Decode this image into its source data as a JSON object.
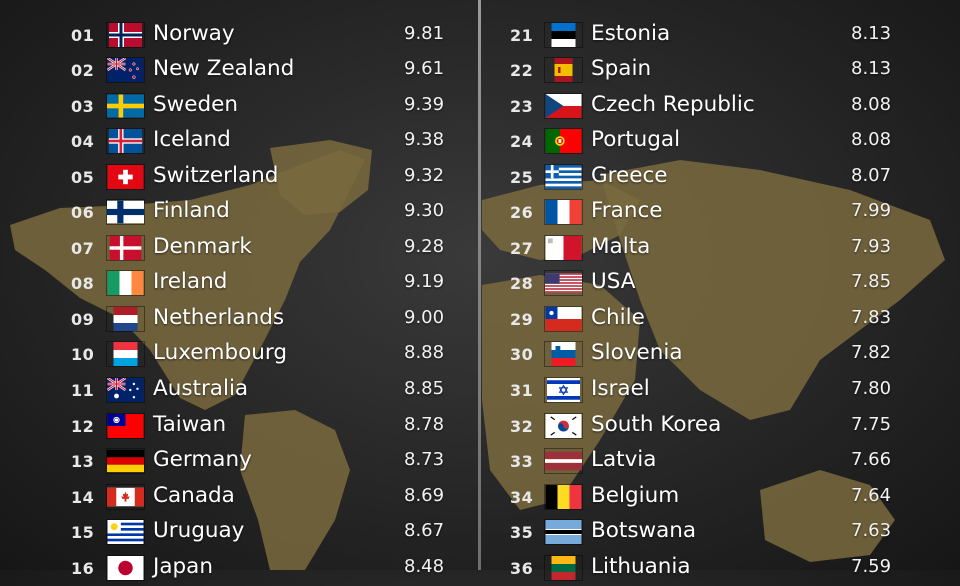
{
  "rankings": {
    "left": [
      {
        "rank": "01",
        "country": "Norway",
        "score": "9.81",
        "flag": "norway-flag-icon"
      },
      {
        "rank": "02",
        "country": "New Zealand",
        "score": "9.61",
        "flag": "new-zealand-flag-icon"
      },
      {
        "rank": "03",
        "country": "Sweden",
        "score": "9.39",
        "flag": "sweden-flag-icon"
      },
      {
        "rank": "04",
        "country": "Iceland",
        "score": "9.38",
        "flag": "iceland-flag-icon"
      },
      {
        "rank": "05",
        "country": "Switzerland",
        "score": "9.32",
        "flag": "switzerland-flag-icon"
      },
      {
        "rank": "06",
        "country": "Finland",
        "score": "9.30",
        "flag": "finland-flag-icon"
      },
      {
        "rank": "07",
        "country": "Denmark",
        "score": "9.28",
        "flag": "denmark-flag-icon"
      },
      {
        "rank": "08",
        "country": "Ireland",
        "score": "9.19",
        "flag": "ireland-flag-icon"
      },
      {
        "rank": "09",
        "country": "Netherlands",
        "score": "9.00",
        "flag": "netherlands-flag-icon"
      },
      {
        "rank": "10",
        "country": "Luxembourg",
        "score": "8.88",
        "flag": "luxembourg-flag-icon"
      },
      {
        "rank": "11",
        "country": "Australia",
        "score": "8.85",
        "flag": "australia-flag-icon"
      },
      {
        "rank": "12",
        "country": "Taiwan",
        "score": "8.78",
        "flag": "taiwan-flag-icon"
      },
      {
        "rank": "13",
        "country": "Germany",
        "score": "8.73",
        "flag": "germany-flag-icon"
      },
      {
        "rank": "14",
        "country": "Canada",
        "score": "8.69",
        "flag": "canada-flag-icon"
      },
      {
        "rank": "15",
        "country": "Uruguay",
        "score": "8.67",
        "flag": "uruguay-flag-icon"
      },
      {
        "rank": "16",
        "country": "Japan",
        "score": "8.48",
        "flag": "japan-flag-icon"
      }
    ],
    "right": [
      {
        "rank": "21",
        "country": "Estonia",
        "score": "8.13",
        "flag": "estonia-flag-icon"
      },
      {
        "rank": "22",
        "country": "Spain",
        "score": "8.13",
        "flag": "spain-flag-icon"
      },
      {
        "rank": "23",
        "country": "Czech Republic",
        "score": "8.08",
        "flag": "czech-flag-icon"
      },
      {
        "rank": "24",
        "country": "Portugal",
        "score": "8.08",
        "flag": "portugal-flag-icon"
      },
      {
        "rank": "25",
        "country": "Greece",
        "score": "8.07",
        "flag": "greece-flag-icon"
      },
      {
        "rank": "26",
        "country": "France",
        "score": "7.99",
        "flag": "france-flag-icon"
      },
      {
        "rank": "27",
        "country": "Malta",
        "score": "7.93",
        "flag": "malta-flag-icon"
      },
      {
        "rank": "28",
        "country": "USA",
        "score": "7.85",
        "flag": "usa-flag-icon"
      },
      {
        "rank": "29",
        "country": "Chile",
        "score": "7.83",
        "flag": "chile-flag-icon"
      },
      {
        "rank": "30",
        "country": "Slovenia",
        "score": "7.82",
        "flag": "slovenia-flag-icon"
      },
      {
        "rank": "31",
        "country": "Israel",
        "score": "7.80",
        "flag": "israel-flag-icon"
      },
      {
        "rank": "32",
        "country": "South Korea",
        "score": "7.75",
        "flag": "south-korea-flag-icon"
      },
      {
        "rank": "33",
        "country": "Latvia",
        "score": "7.66",
        "flag": "latvia-flag-icon"
      },
      {
        "rank": "34",
        "country": "Belgium",
        "score": "7.64",
        "flag": "belgium-flag-icon"
      },
      {
        "rank": "35",
        "country": "Botswana",
        "score": "7.63",
        "flag": "botswana-flag-icon"
      },
      {
        "rank": "36",
        "country": "Lithuania",
        "score": "7.59",
        "flag": "lithuania-flag-icon"
      }
    ]
  },
  "colors": {
    "background": "#262626",
    "map_landmass": "#7a6a3e",
    "divider": "#8a8a8a",
    "text": "#ffffff"
  }
}
